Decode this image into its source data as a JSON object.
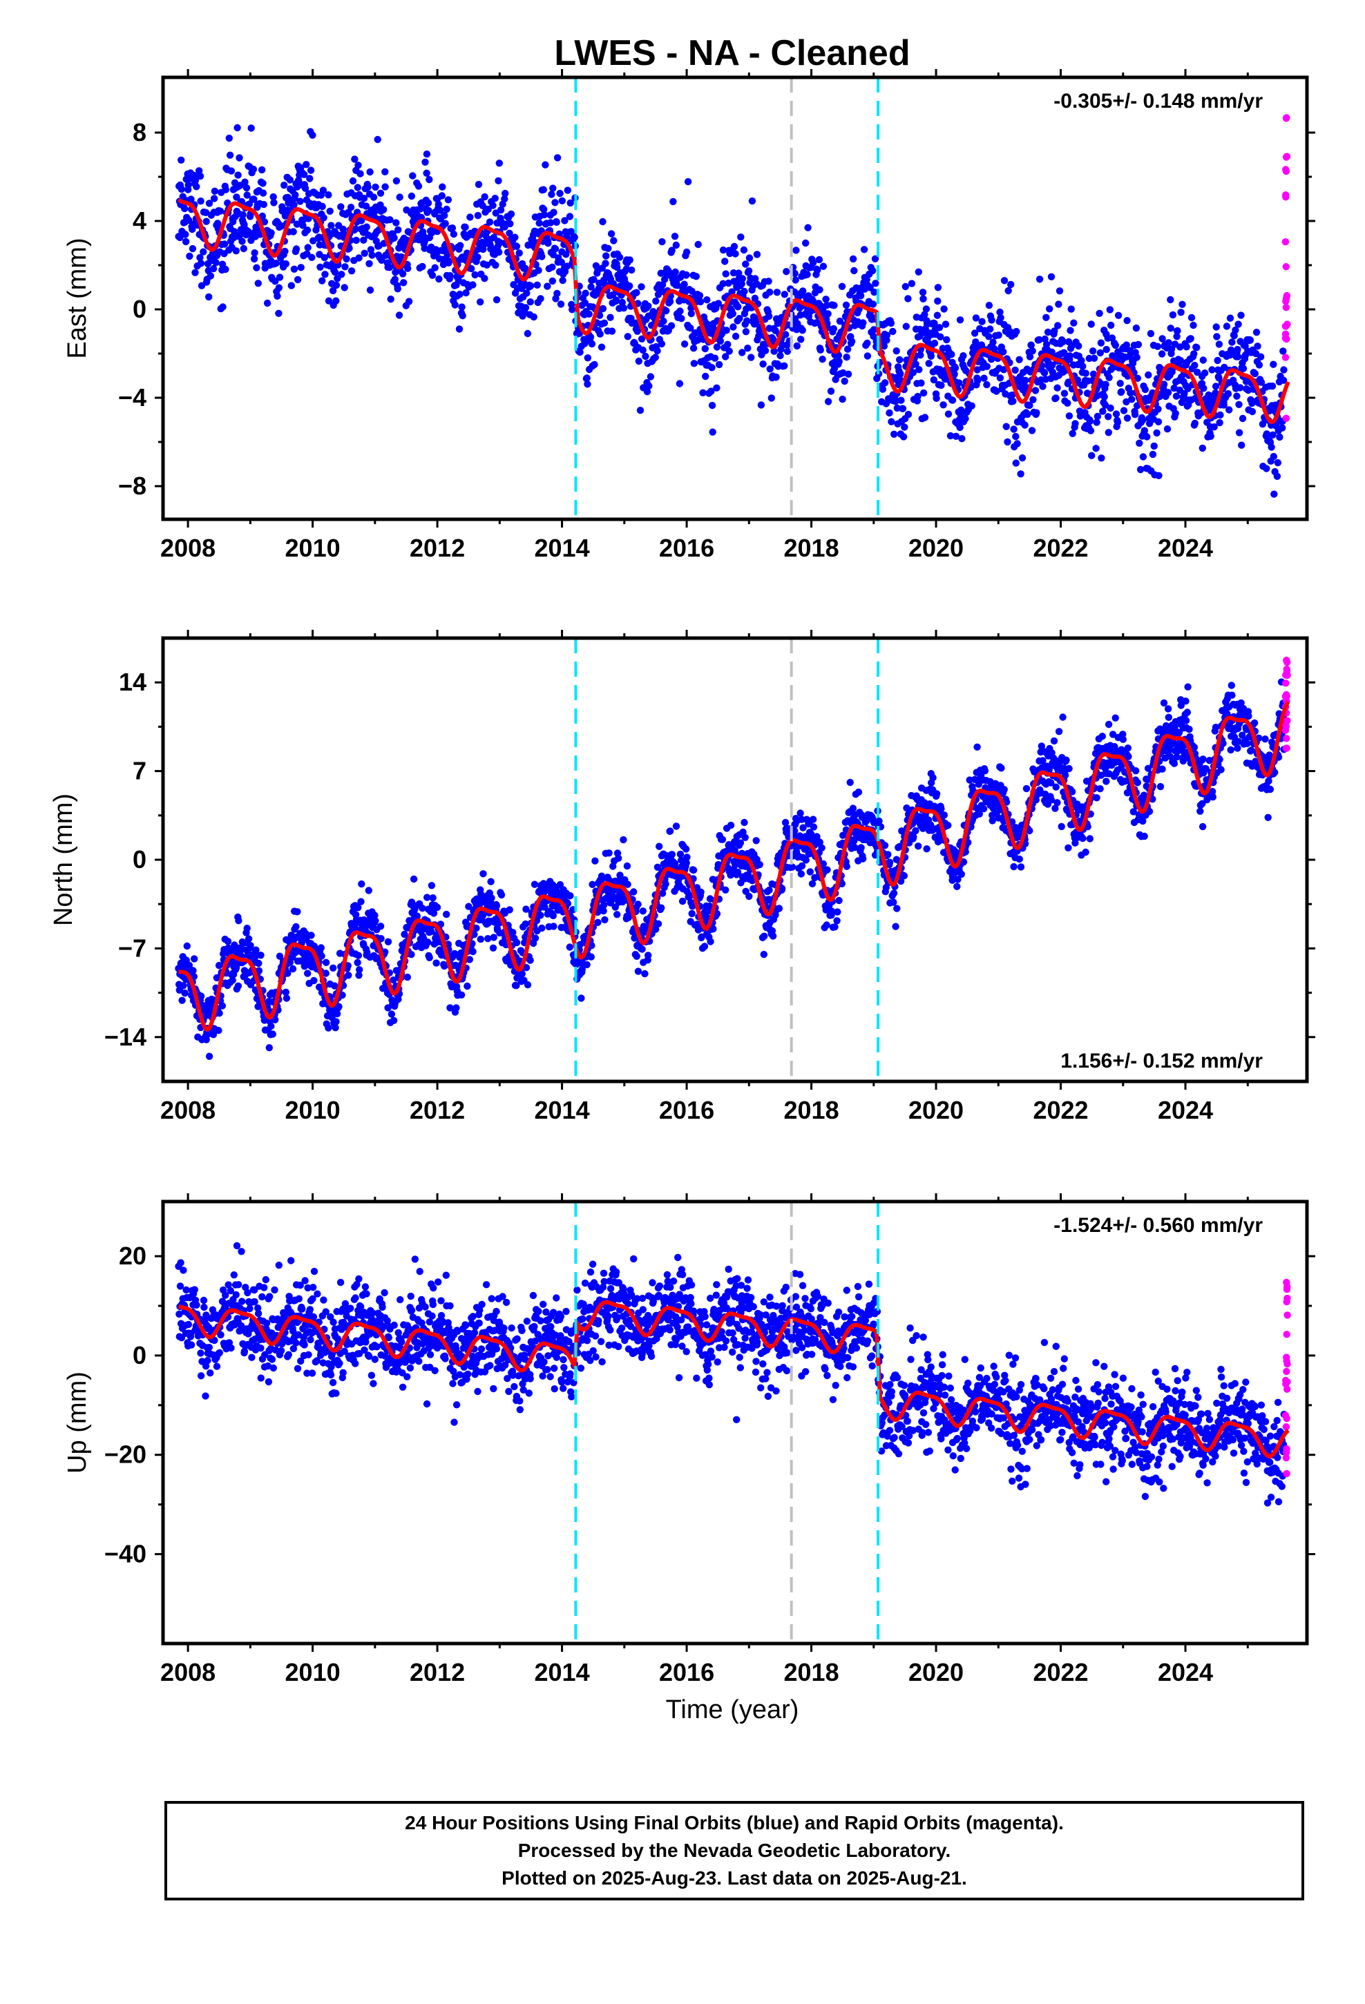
{
  "title": "LWES  - NA - Cleaned",
  "xlabel": "Time (year)",
  "caption": [
    "24 Hour Positions Using Final Orbits (blue) and Rapid Orbits (magenta).",
    "Processed by the Nevada Geodetic Laboratory.",
    "Plotted on 2025-Aug-23. Last data on 2025-Aug-21."
  ],
  "colors": {
    "final_orbits": "#0000ff",
    "rapid_orbits": "#ff00ff",
    "model": "#ff0000",
    "equipment_change": "#00e5ff",
    "other_event": "#c0c0c0"
  },
  "chart_data": [
    {
      "type": "scatter",
      "ylabel": "East (mm)",
      "rate_label": "-0.305+/- 0.148 mm/yr",
      "rate_position": "top-right",
      "xlim": [
        2007.6,
        2025.95
      ],
      "ylim": [
        -9.5,
        10.5
      ],
      "xticks": [
        2008,
        2010,
        2012,
        2014,
        2016,
        2018,
        2020,
        2022,
        2024
      ],
      "yticks": [
        -8,
        -4,
        0,
        4,
        8
      ],
      "x_tick_labels": [
        "2008",
        "2010",
        "2012",
        "2014",
        "2016",
        "2018",
        "2020",
        "2022",
        "2024"
      ],
      "y_tick_labels": [
        "−8",
        "−4",
        "0",
        "4",
        "8"
      ],
      "model": {
        "start": 2007.85,
        "end": 2025.65,
        "trend": [
          [
            2007.85,
            4.2
          ],
          [
            2014.2,
            2.5
          ],
          [
            2014.25,
            0.3
          ],
          [
            2019.05,
            -0.7
          ],
          [
            2019.1,
            -2.3
          ],
          [
            2025.65,
            -3.8
          ]
        ],
        "amplitude": 1.3,
        "phase": 0.62,
        "x_range_min": 2007.85
      },
      "scatter": {
        "noise": 1.6,
        "start": 2007.85,
        "end": 2025.58
      },
      "rapid": {
        "x": 2025.62,
        "y_range": [
          -5.5,
          8.7
        ]
      },
      "vlines": [
        {
          "x": 2014.22,
          "kind": "equipment"
        },
        {
          "x": 2017.68,
          "kind": "other"
        },
        {
          "x": 2019.07,
          "kind": "equipment"
        }
      ]
    },
    {
      "type": "scatter",
      "ylabel": "North (mm)",
      "rate_label": "1.156+/- 0.152 mm/yr",
      "rate_position": "bottom-right",
      "xlim": [
        2007.6,
        2025.95
      ],
      "ylim": [
        -17.5,
        17.5
      ],
      "xticks": [
        2008,
        2010,
        2012,
        2014,
        2016,
        2018,
        2020,
        2022,
        2024
      ],
      "yticks": [
        -14,
        -7,
        0,
        7,
        14
      ],
      "x_tick_labels": [
        "2008",
        "2010",
        "2012",
        "2014",
        "2016",
        "2018",
        "2020",
        "2022",
        "2024"
      ],
      "y_tick_labels": [
        "−14",
        "−7",
        "0",
        "7",
        "14"
      ],
      "model": {
        "start": 2007.85,
        "end": 2025.65,
        "trend": [
          [
            2007.85,
            -10.5
          ],
          [
            2014.2,
            -4.5
          ],
          [
            2019.05,
            1.0
          ],
          [
            2025.65,
            10.5
          ]
        ],
        "amplitude": 3.2,
        "phase": 0.55,
        "x_range_min": 2007.85
      },
      "scatter": {
        "noise": 1.5,
        "start": 2007.85,
        "end": 2025.58
      },
      "rapid": {
        "x": 2025.62,
        "y_range": [
          8.5,
          15.8
        ]
      },
      "vlines": [
        {
          "x": 2014.22,
          "kind": "equipment"
        },
        {
          "x": 2017.68,
          "kind": "other"
        },
        {
          "x": 2019.07,
          "kind": "equipment"
        }
      ]
    },
    {
      "type": "scatter",
      "ylabel": "Up (mm)",
      "rate_label": "-1.524+/- 0.560 mm/yr",
      "rate_position": "top-right",
      "xlim": [
        2007.6,
        2025.95
      ],
      "ylim": [
        -58,
        31
      ],
      "xticks": [
        2008,
        2010,
        2012,
        2014,
        2016,
        2018,
        2020,
        2022,
        2024
      ],
      "yticks": [
        -40,
        -20,
        0,
        20
      ],
      "x_tick_labels": [
        "2008",
        "2010",
        "2012",
        "2014",
        "2016",
        "2018",
        "2020",
        "2022",
        "2024"
      ],
      "y_tick_labels": [
        "−40",
        "−20",
        "0",
        "20"
      ],
      "model": {
        "start": 2007.85,
        "end": 2025.65,
        "trend": [
          [
            2007.85,
            8.0
          ],
          [
            2014.2,
            -0.5
          ],
          [
            2014.25,
            9.0
          ],
          [
            2019.05,
            3.5
          ],
          [
            2019.1,
            -9.0
          ],
          [
            2025.65,
            -17.0
          ]
        ],
        "amplitude": 3.5,
        "phase": 0.58,
        "x_range_min": 2007.85
      },
      "scatter": {
        "noise": 5.5,
        "start": 2007.85,
        "end": 2025.58
      },
      "rapid": {
        "x": 2025.62,
        "y_range": [
          -25.5,
          15.0
        ]
      },
      "vlines": [
        {
          "x": 2014.22,
          "kind": "equipment"
        },
        {
          "x": 2017.68,
          "kind": "other"
        },
        {
          "x": 2019.07,
          "kind": "equipment"
        }
      ]
    }
  ]
}
